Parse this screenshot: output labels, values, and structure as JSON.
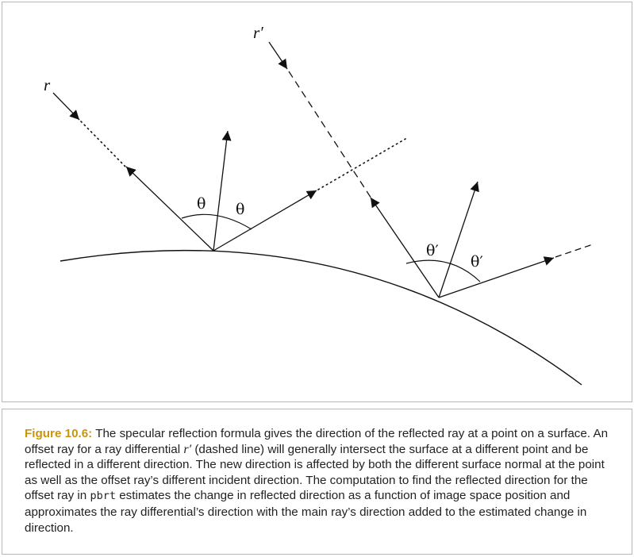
{
  "figure": {
    "ray_label": "r",
    "offset_ray_label": "r′",
    "angle_label": "θ",
    "offset_angle_label": "θ′"
  },
  "caption": {
    "figure_label": "Figure 10.6:",
    "text_1": " The specular reflection formula gives the direction of the reflected ray at a point on a surface. An offset ray for a ray differential ",
    "ray_symbol": "r′",
    "text_2": " (dashed line) will generally intersect the surface at a different point and be reflected in a different direction. The new direction is affected by both the different surface normal at the point as well as the offset ray’s different incident direction. The computation to find the reflected direction for the offset ray in ",
    "code_word": "pbrt",
    "text_3": " estimates the change in reflected direction as a function of image space position and approximates the ray differential’s direction with the main ray’s direction added to the estimated change in direction."
  },
  "colors": {
    "figure_label": "#c8960c",
    "border": "#b8b8b8",
    "ink": "#111111"
  }
}
